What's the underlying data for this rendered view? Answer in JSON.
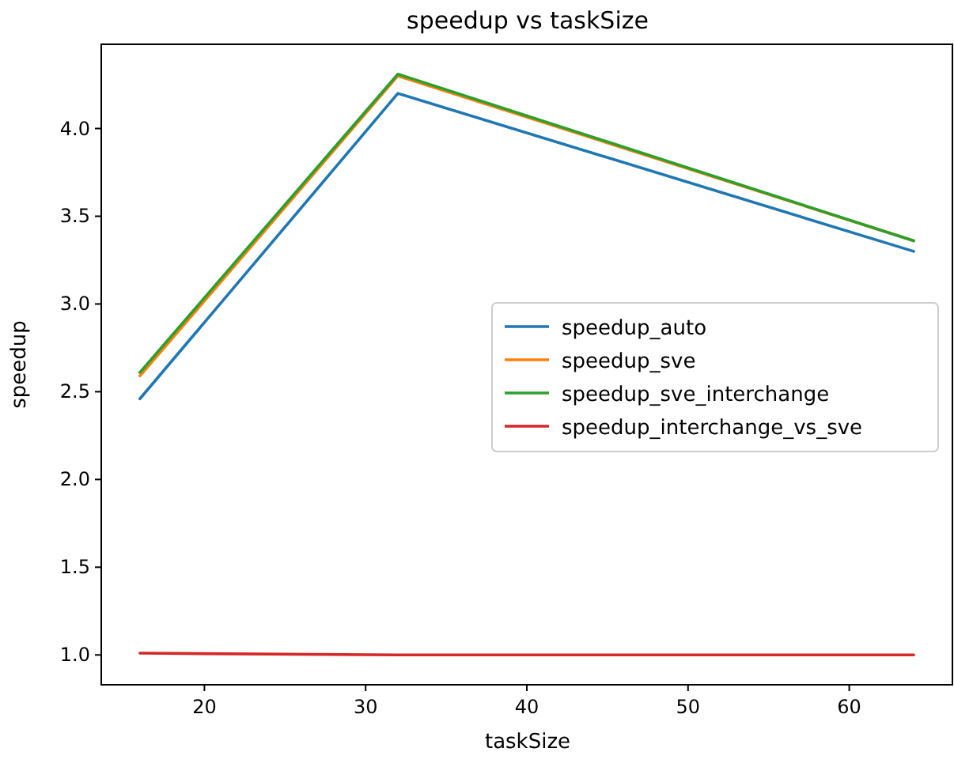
{
  "chart_data": {
    "type": "line",
    "title": "speedup vs taskSize",
    "xlabel": "taskSize",
    "ylabel": "speedup",
    "x": [
      16,
      32,
      64
    ],
    "series": [
      {
        "name": "speedup_auto",
        "color": "#1f77b4",
        "values": [
          2.46,
          4.2,
          3.3
        ]
      },
      {
        "name": "speedup_sve",
        "color": "#ff7f0e",
        "values": [
          2.59,
          4.3,
          3.36
        ]
      },
      {
        "name": "speedup_sve_interchange",
        "color": "#2ca02c",
        "values": [
          2.61,
          4.31,
          3.36
        ]
      },
      {
        "name": "speedup_interchange_vs_sve",
        "color": "#d62728",
        "values": [
          1.01,
          1.0,
          1.0
        ]
      }
    ],
    "xlim": [
      13.6,
      66.4
    ],
    "xticks": [
      20,
      30,
      40,
      50,
      60
    ],
    "ylim": [
      0.83,
      4.48
    ],
    "yticks": [
      {
        "value": 1,
        "label": "1.0"
      },
      {
        "value": 1.5,
        "label": "1.5"
      },
      {
        "value": 2,
        "label": "2.0"
      },
      {
        "value": 2.5,
        "label": "2.5"
      },
      {
        "value": 3,
        "label": "3.0"
      },
      {
        "value": 3.5,
        "label": "3.5"
      },
      {
        "value": 4,
        "label": "4.0"
      }
    ],
    "legend": "right",
    "grid": false,
    "marker": "none",
    "line_style": "solid"
  }
}
